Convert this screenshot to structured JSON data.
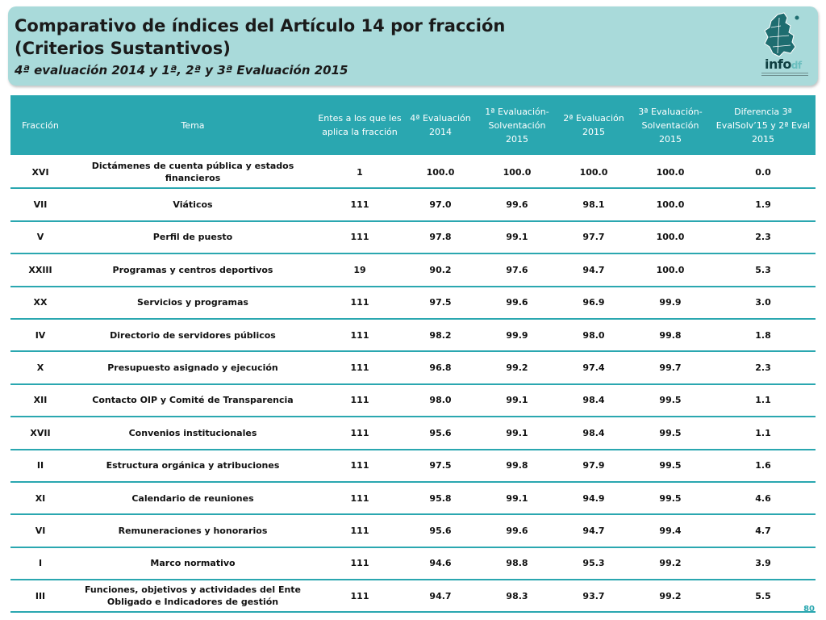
{
  "header": {
    "title_line1": "Comparativo de índices del Artículo 14 por fracción",
    "title_line2": "(Criterios Sustantivos)",
    "subtitle": "4ª evaluación 2014 y 1ª, 2ª y 3ª Evaluación 2015",
    "logo_text": "info",
    "logo_suffix": "df"
  },
  "table": {
    "columns": [
      "Fracción",
      "Tema",
      "Entes a los que les aplica la fracción",
      "4ª Evaluación 2014",
      "1ª Evaluación- Solventación 2015",
      "2ª Evaluación 2015",
      "3ª Evaluación- Solventación 2015",
      "Diferencia 3ª EvalSolv’15 y 2ª Eval 2015"
    ],
    "rows": [
      [
        "XVI",
        "Dictámenes de cuenta pública y estados financieros",
        "1",
        "100.0",
        "100.0",
        "100.0",
        "100.0",
        "0.0"
      ],
      [
        "VII",
        "Viáticos",
        "111",
        "97.0",
        "99.6",
        "98.1",
        "100.0",
        "1.9"
      ],
      [
        "V",
        "Perfil de puesto",
        "111",
        "97.8",
        "99.1",
        "97.7",
        "100.0",
        "2.3"
      ],
      [
        "XXIII",
        "Programas y centros deportivos",
        "19",
        "90.2",
        "97.6",
        "94.7",
        "100.0",
        "5.3"
      ],
      [
        "XX",
        "Servicios y programas",
        "111",
        "97.5",
        "99.6",
        "96.9",
        "99.9",
        "3.0"
      ],
      [
        "IV",
        "Directorio de servidores públicos",
        "111",
        "98.2",
        "99.9",
        "98.0",
        "99.8",
        "1.8"
      ],
      [
        "X",
        "Presupuesto asignado y ejecución",
        "111",
        "96.8",
        "99.2",
        "97.4",
        "99.7",
        "2.3"
      ],
      [
        "XII",
        "Contacto OIP y Comité de Transparencia",
        "111",
        "98.0",
        "99.1",
        "98.4",
        "99.5",
        "1.1"
      ],
      [
        "XVII",
        "Convenios institucionales",
        "111",
        "95.6",
        "99.1",
        "98.4",
        "99.5",
        "1.1"
      ],
      [
        "II",
        "Estructura orgánica y atribuciones",
        "111",
        "97.5",
        "99.8",
        "97.9",
        "99.5",
        "1.6"
      ],
      [
        "XI",
        "Calendario de reuniones",
        "111",
        "95.8",
        "99.1",
        "94.9",
        "99.5",
        "4.6"
      ],
      [
        "VI",
        "Remuneraciones y honorarios",
        "111",
        "95.6",
        "99.6",
        "94.7",
        "99.4",
        "4.7"
      ],
      [
        "I",
        "Marco normativo",
        "111",
        "94.6",
        "98.8",
        "95.3",
        "99.2",
        "3.9"
      ],
      [
        "III",
        "Funciones, objetivos y actividades del Ente Obligado e Indicadores de gestión",
        "111",
        "94.7",
        "98.3",
        "93.7",
        "99.2",
        "5.5"
      ]
    ]
  },
  "page_number": "80",
  "colors": {
    "header_bg": "#a9dada",
    "table_header_bg": "#2aa7b0",
    "row_divider": "#2aa7b0"
  }
}
